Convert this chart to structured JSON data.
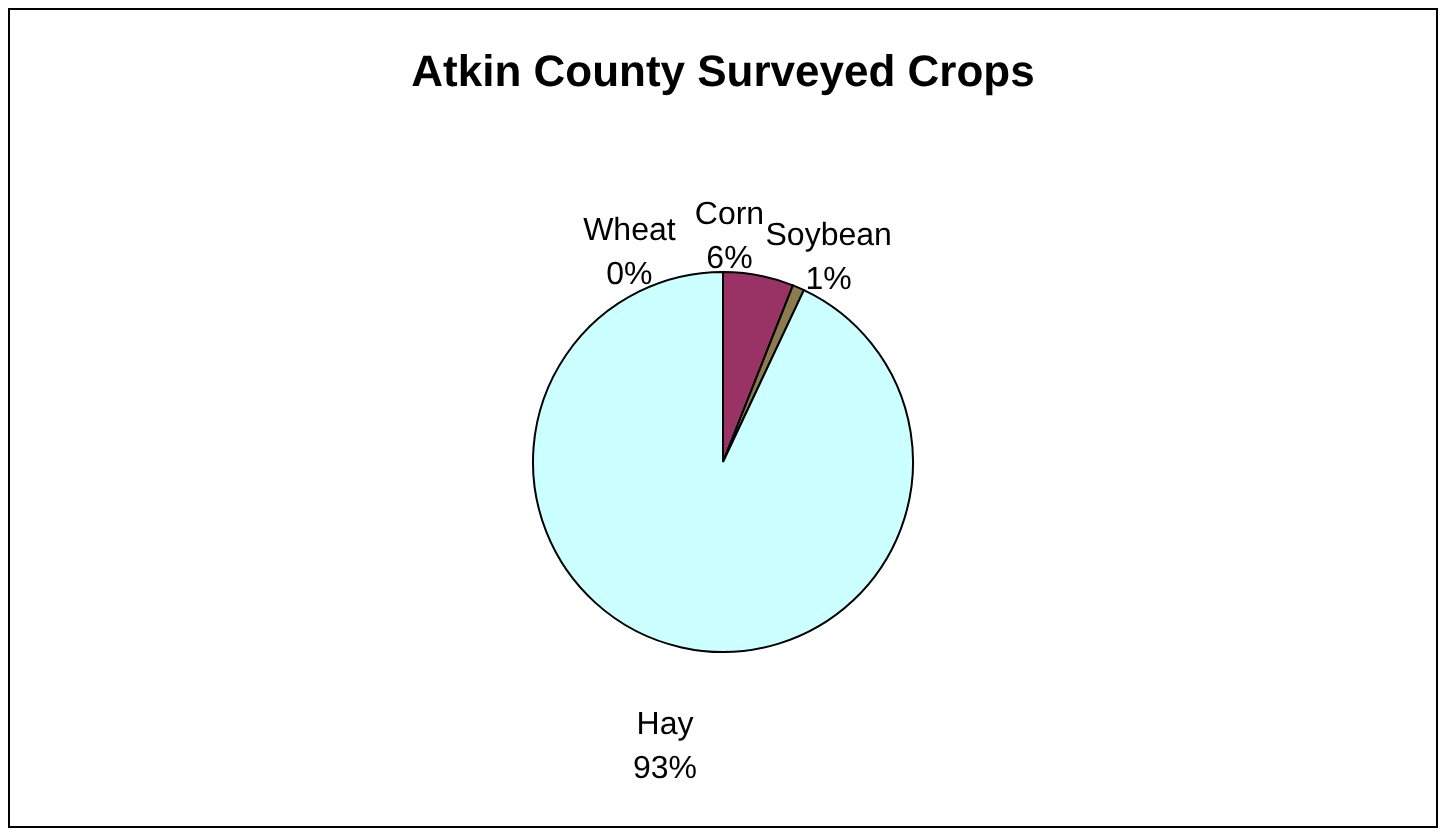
{
  "chart_data": {
    "type": "pie",
    "title": "Atkin County Surveyed Crops",
    "categories": [
      "Wheat",
      "Corn",
      "Soybean",
      "Hay"
    ],
    "values": [
      0,
      6,
      1,
      93
    ],
    "colors": [
      "#ffffff",
      "#993366",
      "#8c7b4e",
      "#ccffff"
    ],
    "value_labels": [
      "0%",
      "6%",
      "1%",
      "93%"
    ],
    "legend": false
  }
}
